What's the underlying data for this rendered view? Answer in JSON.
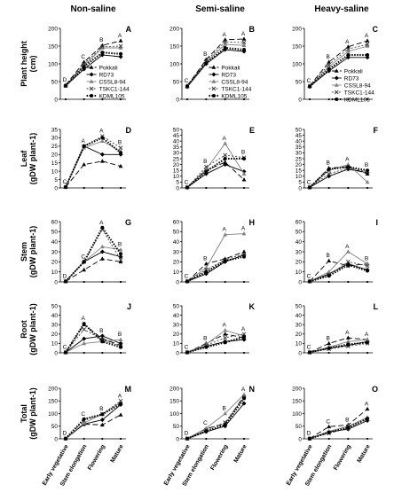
{
  "figure": {
    "columns": [
      "Non-saline",
      "Semi-saline",
      "Heavy-saline"
    ],
    "x_categories": [
      "Early vegetative",
      "Stem elongation",
      "Flowering",
      "Mature"
    ]
  },
  "series_styles": [
    {
      "name": "Pokkali",
      "color": "#000000",
      "dash": "6,3",
      "marker": "triangle"
    },
    {
      "name": "RD73",
      "color": "#000000",
      "dash": "",
      "marker": "diamond"
    },
    {
      "name": "CSSL8-94",
      "color": "#808080",
      "dash": "",
      "marker": "triangle"
    },
    {
      "name": "TSKC1-144",
      "color": "#404040",
      "dash": "2,2",
      "marker": "x"
    },
    {
      "name": "KDML105",
      "color": "#000000",
      "dash": "1.5,1.5",
      "marker": "circle",
      "width": 2
    }
  ],
  "chart_data": [
    {
      "id": "A",
      "type": "line",
      "row": 0,
      "col": 0,
      "ylabel_lines": [
        "Plant height",
        "(cm)"
      ],
      "ylim": [
        0,
        200
      ],
      "yticks": [
        0,
        50,
        100,
        150,
        200
      ],
      "categories": [
        "Early vegetative",
        "Stem elongation",
        "Flowering",
        "Mature"
      ],
      "series": [
        {
          "name": "Pokkali",
          "values": [
            40,
            105,
            152,
            165
          ]
        },
        {
          "name": "RD73",
          "values": [
            38,
            85,
            125,
            120
          ]
        },
        {
          "name": "CSSL8-94",
          "values": [
            38,
            95,
            145,
            145
          ]
        },
        {
          "name": "TSKC1-144",
          "values": [
            38,
            100,
            148,
            150
          ]
        },
        {
          "name": "KDML105",
          "values": [
            38,
            92,
            132,
            128
          ]
        }
      ],
      "sig_labels": [
        "D",
        "C",
        "B",
        "A"
      ],
      "legend": true
    },
    {
      "id": "B",
      "type": "line",
      "row": 0,
      "col": 1,
      "ylim": [
        0,
        200
      ],
      "yticks": [
        0,
        50,
        100,
        150,
        200
      ],
      "categories": [
        "Early vegetative",
        "Stem elongation",
        "Flowering",
        "Mature"
      ],
      "series": [
        {
          "name": "Pokkali",
          "values": [
            38,
            112,
            168,
            170
          ]
        },
        {
          "name": "RD73",
          "values": [
            35,
            100,
            140,
            135
          ]
        },
        {
          "name": "CSSL8-94",
          "values": [
            36,
            105,
            155,
            152
          ]
        },
        {
          "name": "TSKC1-144",
          "values": [
            36,
            108,
            162,
            160
          ]
        },
        {
          "name": "KDML105",
          "values": [
            37,
            102,
            145,
            140
          ]
        }
      ],
      "sig_labels": [
        "C",
        "B",
        "A",
        "A"
      ],
      "legend": true
    },
    {
      "id": "C",
      "type": "line",
      "row": 0,
      "col": 2,
      "ylim": [
        0,
        200
      ],
      "yticks": [
        0,
        50,
        100,
        150,
        200
      ],
      "categories": [
        "Early vegetative",
        "Stem elongation",
        "Flowering",
        "Mature"
      ],
      "series": [
        {
          "name": "Pokkali",
          "values": [
            38,
            105,
            148,
            165
          ]
        },
        {
          "name": "RD73",
          "values": [
            36,
            80,
            118,
            118
          ]
        },
        {
          "name": "CSSL8-94",
          "values": [
            36,
            92,
            135,
            150
          ]
        },
        {
          "name": "TSKC1-144",
          "values": [
            37,
            98,
            142,
            155
          ]
        },
        {
          "name": "KDML105",
          "values": [
            36,
            85,
            125,
            125
          ]
        }
      ],
      "sig_labels": [
        "C",
        "B",
        "A",
        "A"
      ],
      "legend": true
    },
    {
      "id": "D",
      "type": "line",
      "row": 1,
      "col": 0,
      "ylabel_lines": [
        "Leaf",
        "(gDW plant-1)"
      ],
      "ylim": [
        0,
        35
      ],
      "yticks": [
        0,
        5,
        10,
        15,
        20,
        25,
        30,
        35
      ],
      "categories": [
        "Early vegetative",
        "Stem elongation",
        "Flowering",
        "Mature"
      ],
      "series": [
        {
          "name": "Pokkali",
          "values": [
            0.5,
            14,
            16,
            13
          ]
        },
        {
          "name": "RD73",
          "values": [
            0.5,
            25,
            20,
            20
          ]
        },
        {
          "name": "CSSL8-94",
          "values": [
            0.5,
            24,
            28,
            22
          ]
        },
        {
          "name": "TSKC1-144",
          "values": [
            0.5,
            25,
            31,
            24
          ]
        },
        {
          "name": "KDML105",
          "values": [
            0.5,
            25,
            30,
            21
          ]
        }
      ],
      "sig_labels": [
        "C",
        "A",
        "A",
        "B"
      ]
    },
    {
      "id": "E",
      "type": "line",
      "row": 1,
      "col": 1,
      "ylim": [
        0,
        50
      ],
      "yticks": [
        0,
        5,
        10,
        15,
        20,
        25,
        30,
        35,
        40,
        45,
        50
      ],
      "categories": [
        "Early vegetative",
        "Stem elongation",
        "Flowering",
        "Mature"
      ],
      "series": [
        {
          "name": "Pokkali",
          "values": [
            0.5,
            15,
            22,
            7
          ]
        },
        {
          "name": "RD73",
          "values": [
            0.5,
            12,
            20,
            14
          ]
        },
        {
          "name": "CSSL8-94",
          "values": [
            0.5,
            16,
            38,
            12
          ]
        },
        {
          "name": "TSKC1-144",
          "values": [
            0.5,
            18,
            28,
            26
          ]
        },
        {
          "name": "KDML105",
          "values": [
            0.5,
            14,
            25,
            25
          ]
        }
      ],
      "sig_labels": [
        "C",
        "B",
        "A",
        "B"
      ]
    },
    {
      "id": "F",
      "type": "line",
      "row": 1,
      "col": 2,
      "ylim": [
        0,
        50
      ],
      "yticks": [
        0,
        5,
        10,
        15,
        20,
        25,
        30,
        35,
        40,
        45,
        50
      ],
      "categories": [
        "Early vegetative",
        "Stem elongation",
        "Flowering",
        "Mature"
      ],
      "series": [
        {
          "name": "Pokkali",
          "values": [
            0.5,
            17,
            18,
            12
          ]
        },
        {
          "name": "RD73",
          "values": [
            0.5,
            10,
            16,
            13
          ]
        },
        {
          "name": "CSSL8-94",
          "values": [
            0.5,
            15,
            20,
            5
          ]
        },
        {
          "name": "TSKC1-144",
          "values": [
            0.5,
            12,
            17,
            14
          ]
        },
        {
          "name": "KDML105",
          "values": [
            0.5,
            16,
            18,
            15
          ]
        }
      ],
      "sig_labels": [
        "C",
        "B",
        "A",
        "B"
      ]
    },
    {
      "id": "G",
      "type": "line",
      "row": 2,
      "col": 0,
      "ylabel_lines": [
        "Stem",
        "(gDW plant-1)"
      ],
      "ylim": [
        0,
        60
      ],
      "yticks": [
        0,
        10,
        20,
        30,
        40,
        50,
        60
      ],
      "categories": [
        "Early vegetative",
        "Stem elongation",
        "Flowering",
        "Mature"
      ],
      "series": [
        {
          "name": "Pokkali",
          "values": [
            0.5,
            12,
            23,
            20
          ]
        },
        {
          "name": "RD73",
          "values": [
            0.5,
            20,
            30,
            25
          ]
        },
        {
          "name": "CSSL8-94",
          "values": [
            0.5,
            20,
            35,
            32
          ]
        },
        {
          "name": "TSKC1-144",
          "values": [
            0.5,
            20,
            52,
            22
          ]
        },
        {
          "name": "KDML105",
          "values": [
            0.5,
            20,
            54,
            28
          ]
        }
      ],
      "sig_labels": [
        "D",
        "C",
        "A",
        "B"
      ]
    },
    {
      "id": "H",
      "type": "line",
      "row": 2,
      "col": 1,
      "ylim": [
        0,
        60
      ],
      "yticks": [
        0,
        10,
        20,
        30,
        40,
        50,
        60
      ],
      "categories": [
        "Early vegetative",
        "Stem elongation",
        "Flowering",
        "Mature"
      ],
      "series": [
        {
          "name": "Pokkali",
          "values": [
            0.5,
            18,
            23,
            30
          ]
        },
        {
          "name": "RD73",
          "values": [
            0.5,
            8,
            20,
            27
          ]
        },
        {
          "name": "CSSL8-94",
          "values": [
            0.5,
            14,
            47,
            48
          ]
        },
        {
          "name": "TSKC1-144",
          "values": [
            0.5,
            12,
            22,
            28
          ]
        },
        {
          "name": "KDML105",
          "values": [
            0.5,
            10,
            21,
            25
          ]
        }
      ],
      "sig_labels": [
        "C",
        "B",
        "A",
        "A"
      ]
    },
    {
      "id": "I",
      "type": "line",
      "row": 2,
      "col": 2,
      "ylim": [
        0,
        60
      ],
      "yticks": [
        0,
        10,
        20,
        30,
        40,
        50,
        60
      ],
      "categories": [
        "Early vegetative",
        "Stem elongation",
        "Flowering",
        "Mature"
      ],
      "series": [
        {
          "name": "Pokkali",
          "values": [
            0.5,
            21,
            16,
            18
          ]
        },
        {
          "name": "RD73",
          "values": [
            0.5,
            8,
            18,
            12
          ]
        },
        {
          "name": "CSSL8-94",
          "values": [
            0.5,
            10,
            30,
            18
          ]
        },
        {
          "name": "TSKC1-144",
          "values": [
            0.5,
            7,
            20,
            16
          ]
        },
        {
          "name": "KDML105",
          "values": [
            0.5,
            6,
            17,
            11
          ]
        }
      ],
      "sig_labels": [
        "C",
        "B",
        "A",
        "B"
      ]
    },
    {
      "id": "J",
      "type": "line",
      "row": 3,
      "col": 0,
      "ylabel_lines": [
        "Root",
        "(gDW plant-1)"
      ],
      "ylim": [
        0,
        50
      ],
      "yticks": [
        0,
        10,
        20,
        30,
        40,
        50
      ],
      "categories": [
        "Early vegetative",
        "Stem elongation",
        "Flowering",
        "Mature"
      ],
      "series": [
        {
          "name": "Pokkali",
          "values": [
            0.5,
            30,
            15,
            8
          ]
        },
        {
          "name": "RD73",
          "values": [
            0.5,
            15,
            18,
            10
          ]
        },
        {
          "name": "CSSL8-94",
          "values": [
            0.5,
            10,
            12,
            14
          ]
        },
        {
          "name": "TSKC1-144",
          "values": [
            0.5,
            25,
            14,
            7
          ]
        },
        {
          "name": "KDML105",
          "values": [
            0.5,
            31,
            12,
            6
          ]
        }
      ],
      "sig_labels": [
        "C",
        "A",
        "B",
        "B"
      ]
    },
    {
      "id": "K",
      "type": "line",
      "row": 3,
      "col": 1,
      "ylim": [
        0,
        50
      ],
      "yticks": [
        0,
        10,
        20,
        30,
        40,
        50
      ],
      "categories": [
        "Early vegetative",
        "Stem elongation",
        "Flowering",
        "Mature"
      ],
      "series": [
        {
          "name": "Pokkali",
          "values": [
            0.5,
            10,
            20,
            16
          ]
        },
        {
          "name": "RD73",
          "values": [
            0.5,
            7,
            12,
            14
          ]
        },
        {
          "name": "CSSL8-94",
          "values": [
            0.5,
            9,
            24,
            18
          ]
        },
        {
          "name": "TSKC1-144",
          "values": [
            0.5,
            8,
            16,
            20
          ]
        },
        {
          "name": "KDML105",
          "values": [
            0.5,
            6,
            11,
            17
          ]
        }
      ],
      "sig_labels": [
        "C",
        "B",
        "A",
        "A"
      ]
    },
    {
      "id": "L",
      "type": "line",
      "row": 3,
      "col": 2,
      "ylim": [
        0,
        50
      ],
      "yticks": [
        0,
        10,
        20,
        30,
        40,
        50
      ],
      "categories": [
        "Early vegetative",
        "Stem elongation",
        "Flowering",
        "Mature"
      ],
      "series": [
        {
          "name": "Pokkali",
          "values": [
            0.5,
            10,
            16,
            14
          ]
        },
        {
          "name": "RD73",
          "values": [
            0.5,
            5,
            8,
            12
          ]
        },
        {
          "name": "CSSL8-94",
          "values": [
            0.5,
            6,
            12,
            14
          ]
        },
        {
          "name": "TSKC1-144",
          "values": [
            0.5,
            4,
            7,
            10
          ]
        },
        {
          "name": "KDML105",
          "values": [
            0.5,
            5,
            9,
            11
          ]
        }
      ],
      "sig_labels": [
        "C",
        "B",
        "A",
        "A"
      ]
    },
    {
      "id": "M",
      "type": "line",
      "row": 4,
      "col": 0,
      "ylabel_lines": [
        "Total",
        "(gDW plant-1)"
      ],
      "ylim": [
        0,
        200
      ],
      "yticks": [
        0,
        50,
        100,
        150,
        200
      ],
      "categories": [
        "Early vegetative",
        "Stem elongation",
        "Flowering",
        "Mature"
      ],
      "series": [
        {
          "name": "Pokkali",
          "values": [
            1,
            58,
            55,
            95
          ]
        },
        {
          "name": "RD73",
          "values": [
            1,
            58,
            75,
            135
          ]
        },
        {
          "name": "CSSL8-94",
          "values": [
            1,
            62,
            98,
            145
          ]
        },
        {
          "name": "TSKC1-144",
          "values": [
            1,
            72,
            98,
            150
          ]
        },
        {
          "name": "KDML105",
          "values": [
            1,
            78,
            97,
            138
          ]
        }
      ],
      "sig_labels": [
        "D",
        "C",
        "B",
        "A"
      ]
    },
    {
      "id": "N",
      "type": "line",
      "row": 4,
      "col": 1,
      "ylim": [
        0,
        200
      ],
      "yticks": [
        0,
        50,
        100,
        150,
        200
      ],
      "categories": [
        "Early vegetative",
        "Stem elongation",
        "Flowering",
        "Mature"
      ],
      "series": [
        {
          "name": "Pokkali",
          "values": [
            1,
            40,
            60,
            170
          ]
        },
        {
          "name": "RD73",
          "values": [
            1,
            28,
            50,
            140
          ]
        },
        {
          "name": "CSSL8-94",
          "values": [
            1,
            42,
            100,
            175
          ]
        },
        {
          "name": "TSKC1-144",
          "values": [
            1,
            35,
            65,
            165
          ]
        },
        {
          "name": "KDML105",
          "values": [
            1,
            30,
            55,
            160
          ]
        }
      ],
      "sig_labels": [
        "D",
        "C",
        "B",
        "A"
      ]
    },
    {
      "id": "O",
      "type": "line",
      "row": 4,
      "col": 2,
      "ylim": [
        0,
        200
      ],
      "yticks": [
        0,
        50,
        100,
        150,
        200
      ],
      "categories": [
        "Early vegetative",
        "Stem elongation",
        "Flowering",
        "Mature"
      ],
      "series": [
        {
          "name": "Pokkali",
          "values": [
            1,
            48,
            55,
            118
          ]
        },
        {
          "name": "RD73",
          "values": [
            1,
            28,
            38,
            72
          ]
        },
        {
          "name": "CSSL8-94",
          "values": [
            1,
            30,
            50,
            85
          ]
        },
        {
          "name": "TSKC1-144",
          "values": [
            1,
            22,
            42,
            78
          ]
        },
        {
          "name": "KDML105",
          "values": [
            1,
            25,
            45,
            80
          ]
        }
      ],
      "sig_labels": [
        "D",
        "C",
        "B",
        "A"
      ]
    }
  ]
}
